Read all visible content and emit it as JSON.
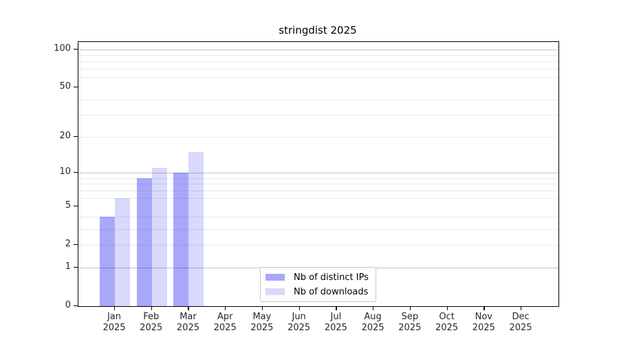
{
  "figure_title": "stringdist 2025",
  "chart_data": {
    "type": "bar",
    "title": "stringdist 2025",
    "y_scale": "log1p",
    "categories": [
      "Jan 2025",
      "Feb 2025",
      "Mar 2025",
      "Apr 2025",
      "May 2025",
      "Jun 2025",
      "Jul 2025",
      "Aug 2025",
      "Sep 2025",
      "Oct 2025",
      "Nov 2025",
      "Dec 2025"
    ],
    "series": [
      {
        "name": "Nb of distinct IPs",
        "color": "#0000f057",
        "values": [
          4,
          9,
          10,
          0,
          0,
          0,
          0,
          0,
          0,
          0,
          0,
          0
        ]
      },
      {
        "name": "Nb of downloads",
        "color": "#0000f026",
        "values": [
          6,
          11,
          15,
          0,
          0,
          0,
          0,
          0,
          0,
          0,
          0,
          0
        ]
      }
    ],
    "xlabel": "",
    "ylabel": "",
    "ylim": [
      0,
      114
    ],
    "y_ticks": [
      0,
      1,
      2,
      5,
      10,
      20,
      50,
      100
    ],
    "y_decade_gridlines": [
      1,
      10,
      100
    ],
    "y_minor_gridlines": [
      2,
      3,
      4,
      6,
      7,
      8,
      9,
      20,
      30,
      40,
      60,
      70,
      80,
      90
    ],
    "grid": true,
    "legend_position": "inside-bottom-center"
  },
  "colors": {
    "bar_distinct_ips": "#0000f057",
    "bar_downloads": "#0000f026",
    "grid_decade": "#c2c2c2",
    "grid_light": "#e9e9e9",
    "axis": "#000000",
    "legend_border": "#c8c8c8"
  },
  "legend": {
    "items": [
      {
        "label": "Nb of distinct IPs",
        "color": "#0000f057"
      },
      {
        "label": "Nb of downloads",
        "color": "#0000f026"
      }
    ]
  }
}
